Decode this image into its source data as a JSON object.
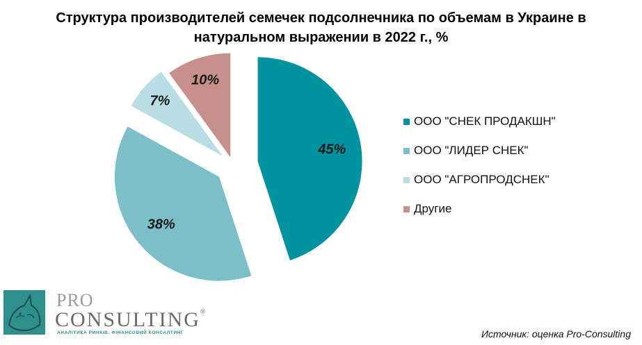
{
  "chart_data": {
    "type": "pie",
    "title": "Структура производителей семечек подсолнечника по объемам в Украине в натуральном выражении в 2022 г., %",
    "title_lines": [
      "Структура производителей семечек подсолнечника по объемам в Украине в",
      "натуральном выражении в 2022 г., %"
    ],
    "categories": [
      "ООО \"СНЕК ПРОДАКШН\"",
      "ООО \"ЛИДЕР СНЕК\"",
      "ООО \"АГРОПРОДСНЕК\"",
      "Другие"
    ],
    "values": [
      45,
      38,
      7,
      10
    ],
    "value_labels": [
      "45%",
      "38%",
      "7%",
      "10%"
    ],
    "colors": [
      "#00929e",
      "#7cbfc8",
      "#b9dde2",
      "#c8908a"
    ],
    "legend_position": "right",
    "exploded": true
  },
  "source": "Источник: оценка Pro-Consulting",
  "logo": {
    "pro": "PRO",
    "consulting": "CONSULTING",
    "registered": "®",
    "tagline": "АНАЛІТИКА РИНКІВ. ФІНАНСОВИЙ КОНСАЛТИНГ"
  }
}
